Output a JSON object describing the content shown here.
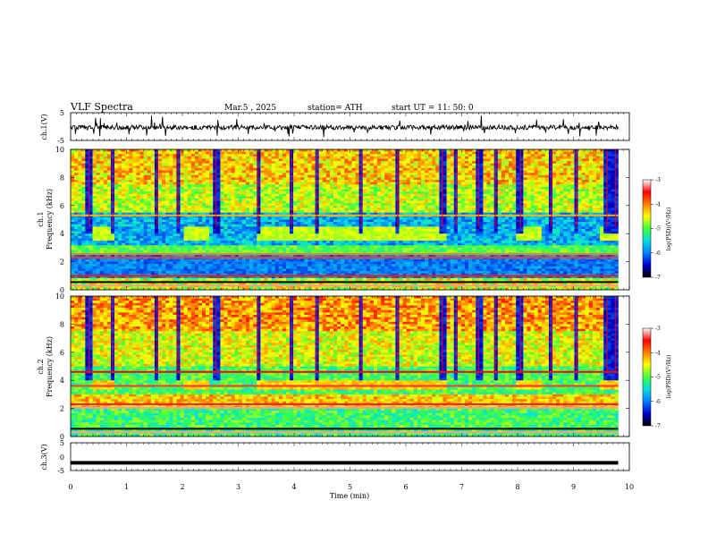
{
  "header": {
    "title": "VLF  Spectra",
    "date": "Mar.5  , 2025",
    "station": "station= ATH",
    "start_ut": "start  UT  =   11: 50: 0"
  },
  "panels": {
    "ch1_time": {
      "ylabel": "ch.1(V)",
      "yticks": [
        "5",
        "-5"
      ]
    },
    "ch1_spec": {
      "ylabel_channel": "ch.1",
      "ylabel": "Frequency  (kHz)",
      "yticks": [
        "0",
        "2",
        "4",
        "6",
        "8",
        "10"
      ]
    },
    "ch2_spec": {
      "ylabel_channel": "ch.2",
      "ylabel": "Frequency  (kHz)",
      "yticks": [
        "0",
        "2",
        "4",
        "6",
        "8",
        "10"
      ]
    },
    "ch3_time": {
      "ylabel": "ch.3(V)",
      "yticks": [
        "5",
        "0",
        "-5"
      ]
    }
  },
  "colorbars": [
    {
      "label": "log(PSD)(V²/Hz)",
      "ticks": [
        "-3",
        "-4",
        "-5",
        "-6",
        "-7"
      ]
    },
    {
      "label": "log(PSD)(V²/Hz)",
      "ticks": [
        "-3",
        "-4",
        "-5",
        "-6",
        "-7"
      ]
    }
  ],
  "chart_data": {
    "type": "heatmap",
    "xlabel": "Time  (min)",
    "xticks": [
      "0",
      "1",
      "2",
      "3",
      "4",
      "5",
      "6",
      "7",
      "8",
      "9",
      "10"
    ],
    "xlim": [
      0,
      10
    ],
    "data_end_min": 9.8,
    "colorbar_range": [
      -7,
      -3
    ],
    "colors": [
      "#000000",
      "#0000cc",
      "#0080ff",
      "#00e0e0",
      "#40ff40",
      "#ffff00",
      "#ff8000",
      "#ff0000",
      "#ffffff"
    ],
    "ch1_timeseries": {
      "ylim": [
        -5,
        5
      ],
      "mean_level": -0.3
    },
    "ch3_timeseries": {
      "ylim": [
        -5,
        5
      ],
      "level": -2.2
    },
    "ch1_spectrogram": {
      "ylim_khz": [
        0,
        10
      ]
    },
    "ch2_spectrogram": {
      "ylim_khz": [
        0,
        10
      ]
    }
  }
}
